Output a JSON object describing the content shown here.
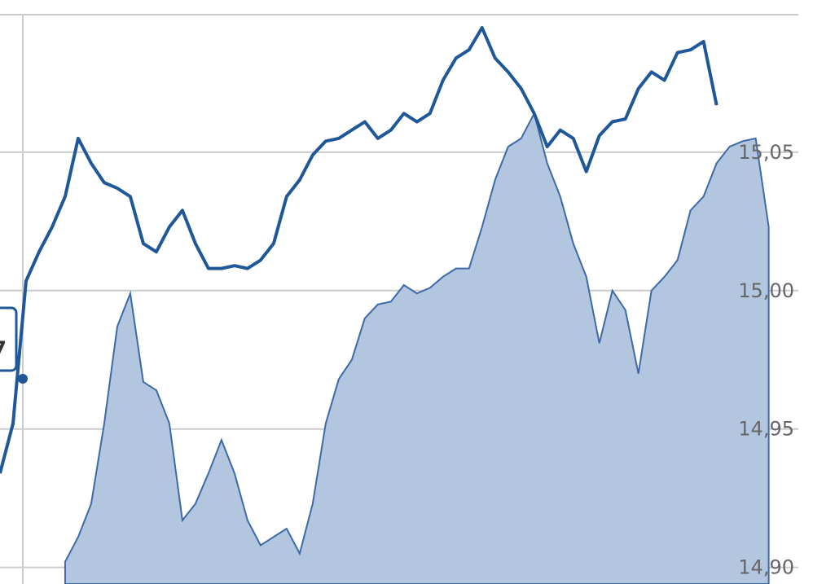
{
  "chart_data": {
    "type": "line",
    "annotation": "7",
    "x": [
      0,
      1,
      2,
      3,
      4,
      5,
      6,
      7,
      8,
      9,
      10,
      11,
      12,
      13,
      14,
      15,
      16,
      17,
      18,
      19,
      20,
      21,
      22,
      23,
      24,
      25,
      26,
      27,
      28,
      29,
      30,
      31,
      32,
      33,
      34,
      35,
      36,
      37,
      38,
      39,
      40,
      41,
      42,
      43,
      44,
      45,
      46,
      47,
      48,
      49,
      50,
      51,
      52,
      53,
      54,
      55,
      56,
      57,
      58,
      59
    ],
    "xlim": [
      0,
      62.4
    ],
    "ylim": [
      14.894,
      15.105
    ],
    "yticks": [
      {
        "value": 15.05,
        "label": "15,05"
      },
      {
        "value": 15.0,
        "label": "15,00"
      },
      {
        "value": 14.95,
        "label": "14,95"
      },
      {
        "value": 14.9,
        "label": "14,90"
      }
    ],
    "grid": true,
    "series": [
      {
        "type": "area",
        "color": "#b3c6df",
        "values": [
          null,
          null,
          null,
          null,
          null,
          14.902,
          14.911,
          14.923,
          14.952,
          14.987,
          14.999,
          14.967,
          14.964,
          14.952,
          14.917,
          14.923,
          14.934,
          14.946,
          14.934,
          14.917,
          14.908,
          14.911,
          14.914,
          14.905,
          14.923,
          14.952,
          14.968,
          14.975,
          14.99,
          14.995,
          14.996,
          15.002,
          14.999,
          15.001,
          15.005,
          15.008,
          15.008,
          15.023,
          15.04,
          15.052,
          15.055,
          15.064,
          15.046,
          15.034,
          15.017,
          15.005,
          14.981,
          15.0,
          14.993,
          14.97,
          15.0,
          15.005,
          15.011,
          15.029,
          15.034,
          15.046,
          15.052,
          15.054,
          15.055,
          15.023
        ]
      },
      {
        "type": "line",
        "color": "#1f5799",
        "values": [
          14.934,
          14.952,
          15.0035,
          15.014,
          15.023,
          15.034,
          15.055,
          15.046,
          15.039,
          15.037,
          15.034,
          15.017,
          15.014,
          15.023,
          15.029,
          15.017,
          15.008,
          15.008,
          15.009,
          15.008,
          15.011,
          15.017,
          15.034,
          15.04,
          15.049,
          15.054,
          15.055,
          15.058,
          15.061,
          15.055,
          15.058,
          15.064,
          15.061,
          15.064,
          15.076,
          15.084,
          15.087,
          15.095,
          15.084,
          15.079,
          15.073,
          15.064,
          15.052,
          15.058,
          15.055,
          15.043,
          15.056,
          15.061,
          15.062,
          15.073,
          15.079,
          15.076,
          15.086,
          15.087,
          15.09,
          15.067,
          null,
          null,
          null,
          null
        ]
      }
    ]
  }
}
